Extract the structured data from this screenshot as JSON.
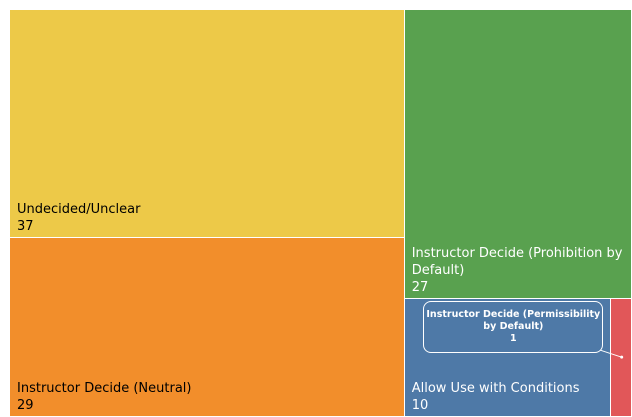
{
  "chart_data": {
    "type": "treemap",
    "categories": [
      "Undecided/Unclear",
      "Instructor Decide (Neutral)",
      "Instructor Decide (Prohibition by Default)",
      "Allow Use with Conditions",
      "Instructor Decide (Permissibility by Default)"
    ],
    "values": [
      37,
      29,
      27,
      10,
      1
    ],
    "colors": [
      "#edc948",
      "#f28e2b",
      "#59a14f",
      "#4e79a7",
      "#e15759"
    ],
    "text_colors": [
      "#000000",
      "#000000",
      "#ffffff",
      "#ffffff",
      "#ffffff"
    ]
  }
}
